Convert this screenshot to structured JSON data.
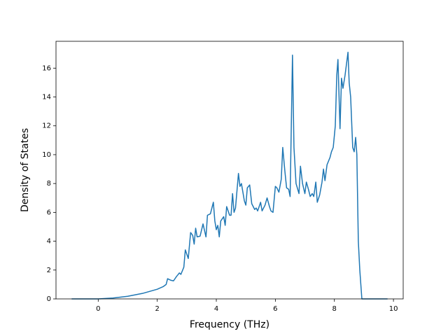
{
  "chart_data": {
    "type": "line",
    "x_label": "Frequency (THz)",
    "y_label": "Density of States",
    "x": [
      -0.9,
      0,
      0.5,
      1.0,
      1.5,
      2.0,
      2.2,
      2.3,
      2.35,
      2.45,
      2.55,
      2.65,
      2.75,
      2.8,
      2.9,
      2.95,
      3.05,
      3.13,
      3.2,
      3.25,
      3.3,
      3.35,
      3.45,
      3.55,
      3.65,
      3.7,
      3.8,
      3.9,
      3.95,
      4.0,
      4.05,
      4.1,
      4.15,
      4.25,
      4.3,
      4.35,
      4.45,
      4.5,
      4.55,
      4.6,
      4.65,
      4.75,
      4.8,
      4.85,
      4.95,
      5.0,
      5.05,
      5.13,
      5.2,
      5.3,
      5.35,
      5.4,
      5.5,
      5.55,
      5.65,
      5.72,
      5.8,
      5.85,
      5.92,
      6.0,
      6.05,
      6.12,
      6.2,
      6.25,
      6.32,
      6.38,
      6.45,
      6.5,
      6.58,
      6.63,
      6.7,
      6.8,
      6.85,
      6.92,
      7.0,
      7.05,
      7.12,
      7.18,
      7.25,
      7.3,
      7.37,
      7.42,
      7.5,
      7.58,
      7.63,
      7.68,
      7.75,
      7.85,
      7.9,
      7.96,
      8.03,
      8.08,
      8.12,
      8.19,
      8.24,
      8.29,
      8.36,
      8.46,
      8.5,
      8.55,
      8.62,
      8.67,
      8.72,
      8.76,
      8.81,
      8.86,
      8.93,
      9.8
    ],
    "series": [
      {
        "color": "#1f77b4",
        "values": [
          0,
          0,
          0.06,
          0.18,
          0.38,
          0.67,
          0.85,
          1.0,
          1.4,
          1.3,
          1.25,
          1.55,
          1.8,
          1.7,
          2.2,
          3.4,
          2.8,
          4.6,
          4.4,
          3.8,
          4.9,
          4.3,
          4.35,
          5.2,
          4.3,
          5.8,
          5.9,
          6.7,
          5.4,
          4.8,
          5.1,
          4.3,
          5.4,
          5.7,
          5.1,
          6.4,
          5.8,
          5.8,
          7.3,
          6.0,
          6.3,
          8.7,
          7.8,
          8.0,
          6.8,
          6.5,
          7.7,
          7.9,
          6.6,
          6.2,
          6.3,
          6.1,
          6.7,
          6.1,
          6.5,
          7.0,
          6.4,
          6.1,
          6.0,
          7.8,
          7.7,
          7.4,
          8.3,
          10.5,
          8.9,
          7.7,
          7.6,
          7.1,
          16.9,
          10.5,
          8.0,
          7.3,
          9.2,
          8.0,
          7.3,
          8.1,
          7.6,
          7.1,
          7.3,
          7.1,
          8.1,
          6.7,
          7.2,
          8.1,
          9.0,
          8.2,
          9.3,
          9.8,
          10.2,
          10.5,
          12.0,
          15.5,
          16.6,
          11.8,
          15.3,
          14.6,
          15.5,
          17.1,
          15.0,
          14.0,
          10.5,
          10.2,
          11.2,
          10.0,
          4.0,
          2.0,
          0,
          0
        ]
      }
    ],
    "xlim": [
      -1.43,
      10.33
    ],
    "xticks": [
      0,
      2,
      4,
      6,
      8,
      10
    ],
    "ylim": [
      0,
      17.86
    ],
    "yticks": [
      0,
      2,
      4,
      6,
      8,
      10,
      12,
      14,
      16
    ]
  }
}
